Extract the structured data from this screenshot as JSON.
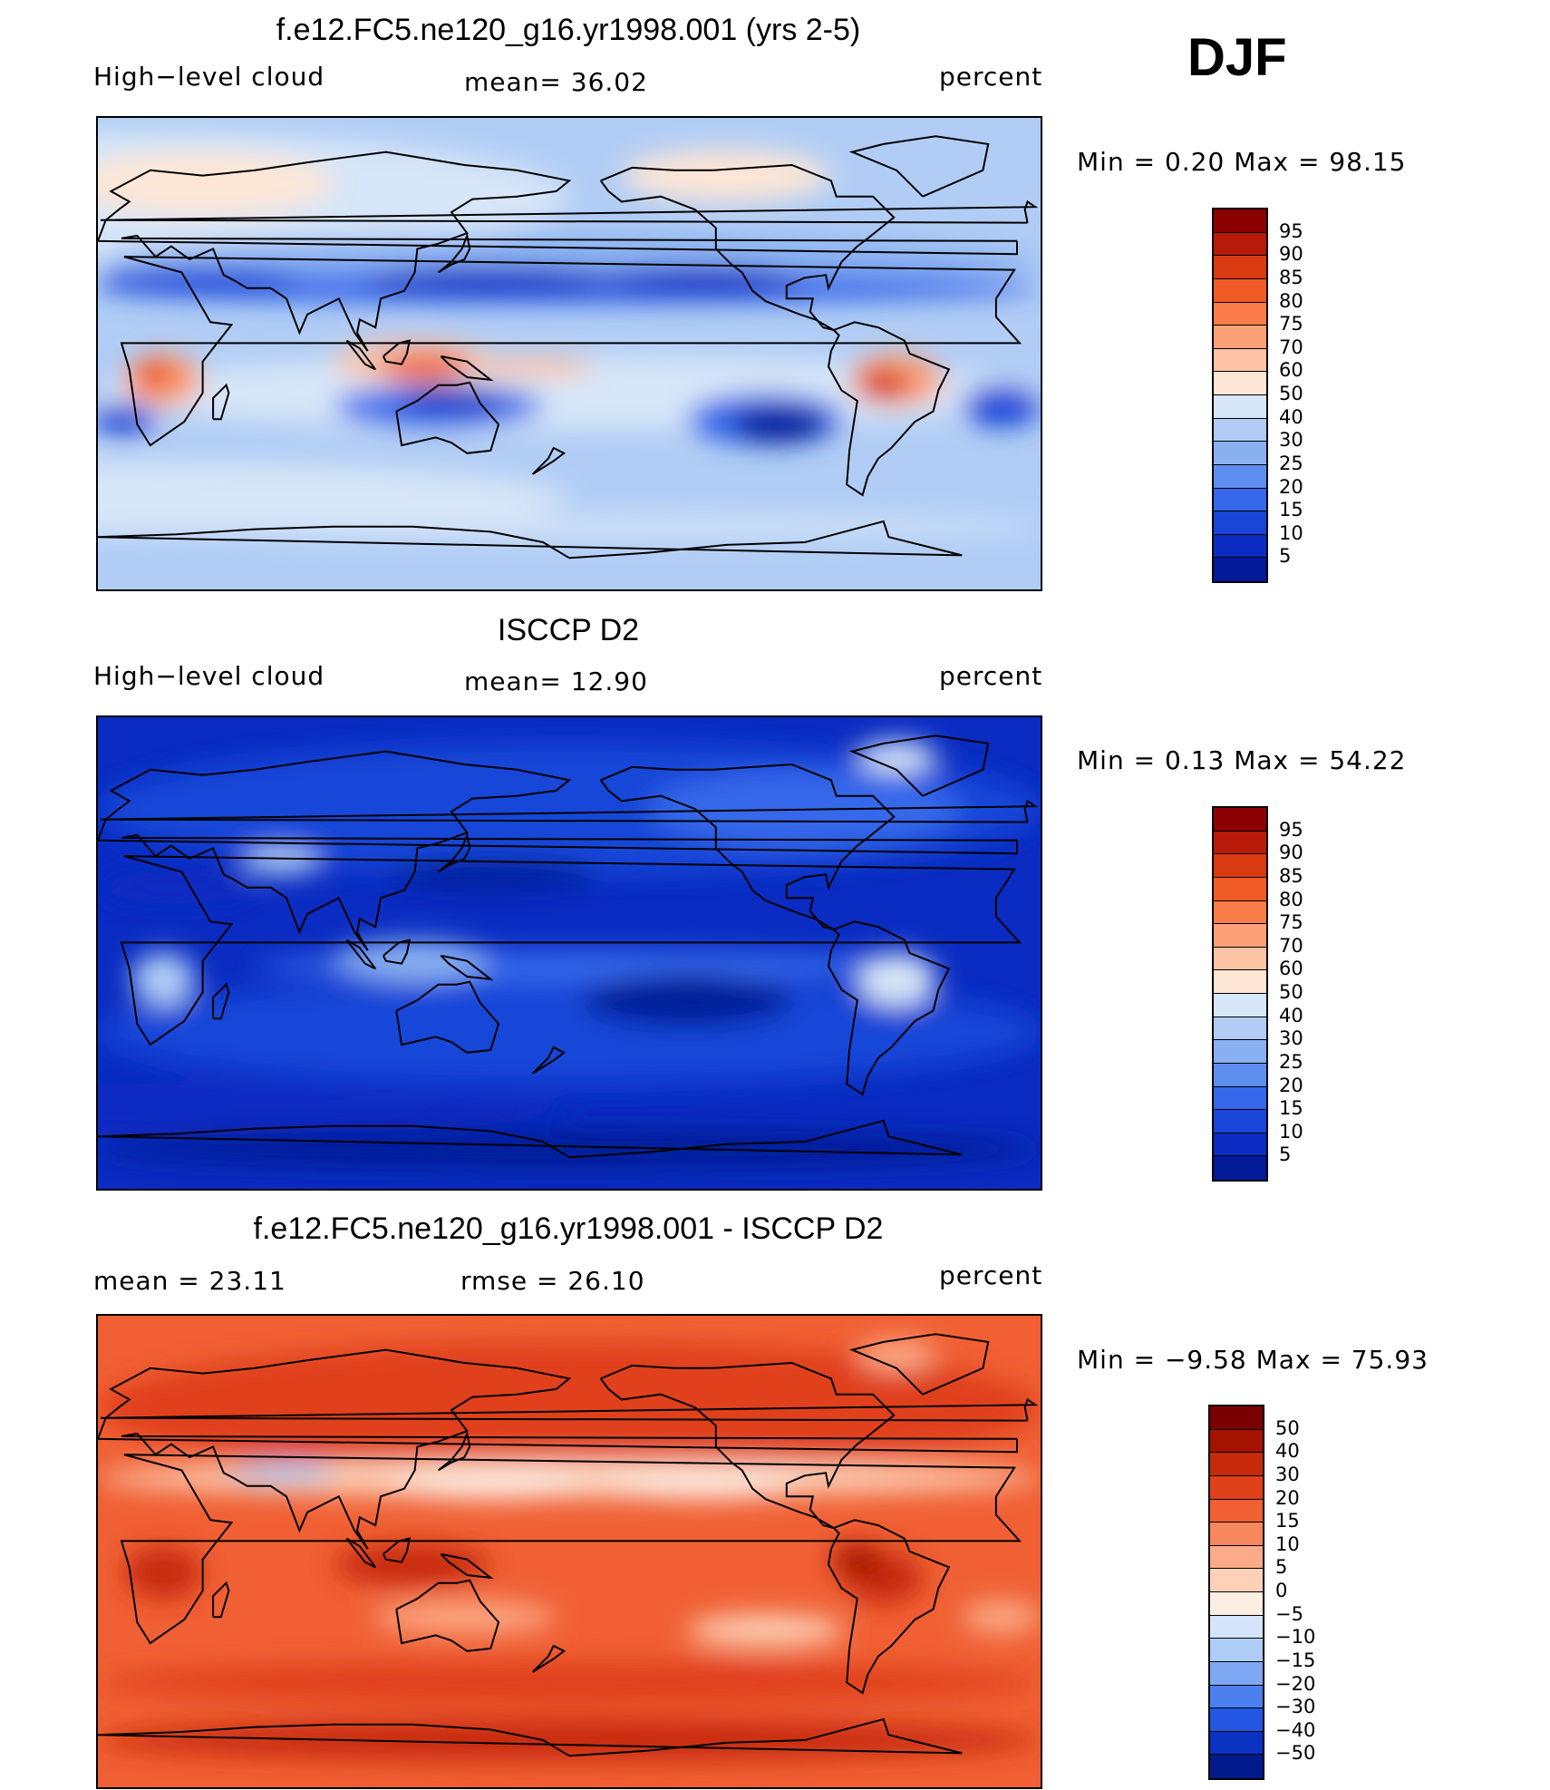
{
  "season": "DJF",
  "panels": [
    {
      "title": "f.e12.FC5.ne120_g16.yr1998.001 (yrs 2-5)",
      "left_label": "High−level cloud",
      "stat1": "mean=   36.02",
      "stat2": "",
      "units": "percent",
      "minmax": "Min =    0.20 Max =   98.15",
      "colorbar": {
        "labels": [
          "95",
          "90",
          "85",
          "80",
          "75",
          "70",
          "60",
          "50",
          "40",
          "30",
          "25",
          "20",
          "15",
          "10",
          "5"
        ],
        "colors": [
          "#8b0000",
          "#b81a0a",
          "#d93a12",
          "#f05a25",
          "#fa7c48",
          "#fca077",
          "#fcc3a4",
          "#fde6d6",
          "#d7e6f8",
          "#b1cdf5",
          "#89b1f2",
          "#5e8ff0",
          "#3567ea",
          "#1946d8",
          "#0a2cc2",
          "#031a99"
        ]
      },
      "palette": "model"
    },
    {
      "title": "ISCCP D2",
      "left_label": "High−level cloud",
      "stat1": "mean=   12.90",
      "stat2": "",
      "units": "percent",
      "minmax": "Min =    0.13 Max =   54.22",
      "colorbar": {
        "labels": [
          "95",
          "90",
          "85",
          "80",
          "75",
          "70",
          "60",
          "50",
          "40",
          "30",
          "25",
          "20",
          "15",
          "10",
          "5"
        ],
        "colors": [
          "#8b0000",
          "#b81a0a",
          "#d93a12",
          "#f05a25",
          "#fa7c48",
          "#fca077",
          "#fcc3a4",
          "#fde6d6",
          "#d7e6f8",
          "#b1cdf5",
          "#89b1f2",
          "#5e8ff0",
          "#3567ea",
          "#1946d8",
          "#0a2cc2",
          "#031a99"
        ]
      },
      "palette": "obs"
    },
    {
      "title": "f.e12.FC5.ne120_g16.yr1998.001 - ISCCP D2",
      "left_label": "mean =   23.11",
      "stat1": "rmse =   26.10",
      "stat2": "",
      "units": "percent",
      "minmax": "Min =  −9.58 Max =   75.93",
      "colorbar": {
        "labels": [
          "50",
          "40",
          "30",
          "20",
          "15",
          "10",
          "5",
          "0",
          "−5",
          "−10",
          "−15",
          "−20",
          "−30",
          "−40",
          "−50"
        ],
        "colors": [
          "#7a0000",
          "#a31300",
          "#c72a08",
          "#e0401a",
          "#f06034",
          "#f7875c",
          "#fbab88",
          "#fdd1b8",
          "#fdeee4",
          "#d3e4fb",
          "#aecdf8",
          "#7ea8f4",
          "#4d80ef",
          "#2357e3",
          "#0a33c4",
          "#011a8c"
        ]
      },
      "palette": "diff"
    }
  ]
}
